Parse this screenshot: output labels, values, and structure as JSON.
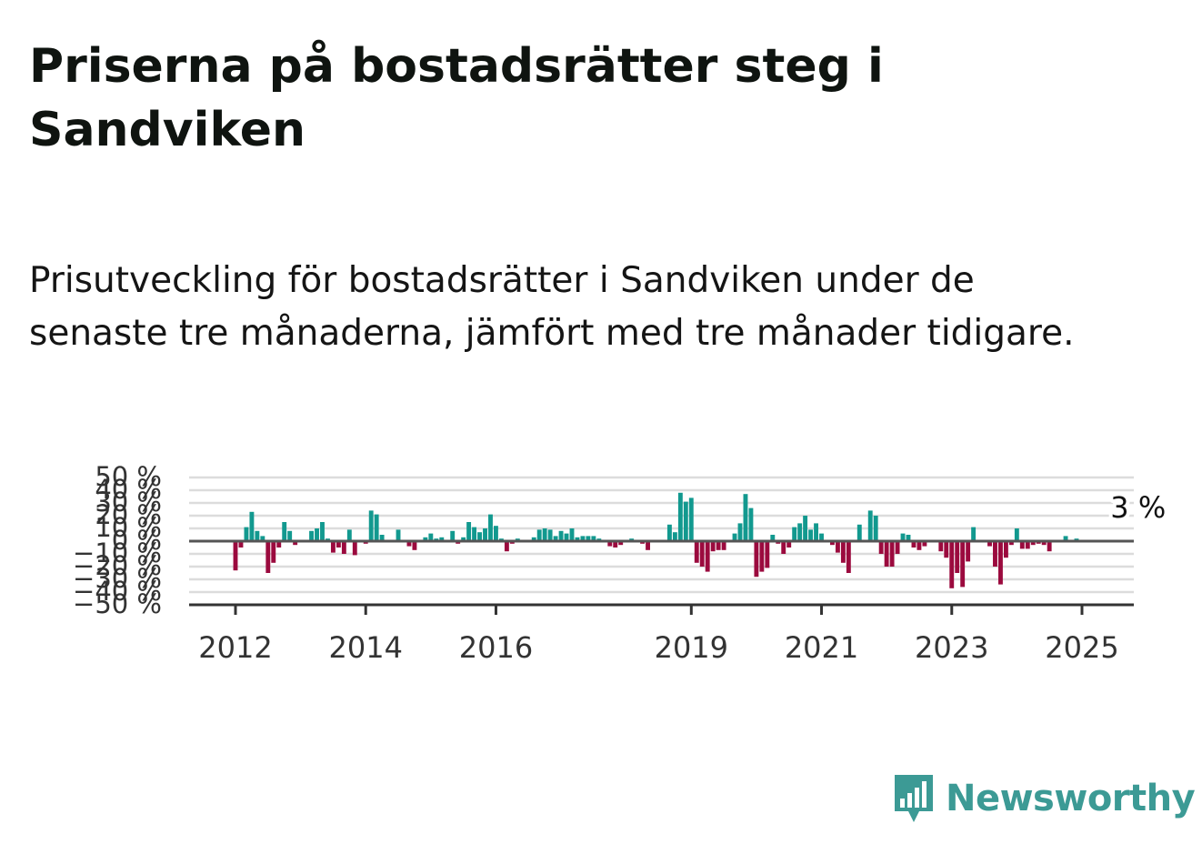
{
  "header": {
    "title": "Priserna på bostadsrätter steg i Sandviken",
    "subtitle": "Prisutveckling för bostadsrätter i Sandviken under de senaste tre månaderna, jämfört med tre månader tidigare."
  },
  "brand": {
    "name": "Newsworthy",
    "icon": "newsworthy-logo-icon",
    "color": "#3c9a95"
  },
  "chart_data": {
    "type": "bar",
    "title": "",
    "xlabel": "",
    "ylabel": "",
    "ylim": [
      -50,
      50
    ],
    "y_ticks": [
      {
        "value": 50,
        "label": "50 %"
      },
      {
        "value": 40,
        "label": "40 %"
      },
      {
        "value": 30,
        "label": "30 %"
      },
      {
        "value": 20,
        "label": "20 %"
      },
      {
        "value": 10,
        "label": "10 %"
      },
      {
        "value": 0,
        "label": "0 %"
      },
      {
        "value": -10,
        "label": "−10 %"
      },
      {
        "value": -20,
        "label": "−20 %"
      },
      {
        "value": -30,
        "label": "−30 %"
      },
      {
        "value": -40,
        "label": "−40 %"
      },
      {
        "value": -50,
        "label": "−50 %"
      }
    ],
    "x_ticks": [
      {
        "value": 2012,
        "label": "2012"
      },
      {
        "value": 2014,
        "label": "2014"
      },
      {
        "value": 2016,
        "label": "2016"
      },
      {
        "value": 2019,
        "label": "2019"
      },
      {
        "value": 2021,
        "label": "2021"
      },
      {
        "value": 2023,
        "label": "2023"
      },
      {
        "value": 2025,
        "label": "2025"
      }
    ],
    "x_start": 2012.0,
    "x_step": 0.08333,
    "positive_color": "#12998f",
    "negative_color": "#9b0a3e",
    "grid": true,
    "annotation": {
      "label": "3 %",
      "index": 162
    },
    "values": [
      -23,
      -5,
      11,
      23,
      8,
      4,
      -25,
      -17,
      -5,
      15,
      8,
      -3,
      0,
      0,
      8,
      10,
      15,
      2,
      -9,
      -5,
      -10,
      9,
      -11,
      0,
      -2,
      24,
      21,
      5,
      0,
      -1,
      9,
      0,
      -4,
      -7,
      0,
      3,
      6,
      2,
      3,
      0,
      8,
      -2,
      3,
      15,
      11,
      7,
      10,
      21,
      12,
      2,
      -8,
      -2,
      2,
      0,
      0,
      3,
      9,
      10,
      9,
      4,
      8,
      6,
      10,
      3,
      4,
      4,
      4,
      2,
      0,
      -4,
      -5,
      -3,
      0,
      2,
      0,
      -2,
      -7,
      0,
      0,
      0,
      13,
      7,
      38,
      31,
      34,
      -17,
      -20,
      -24,
      -8,
      -7,
      -7,
      0,
      6,
      14,
      37,
      26,
      -28,
      -24,
      -21,
      5,
      -2,
      -10,
      -5,
      11,
      14,
      20,
      9,
      14,
      6,
      0,
      -3,
      -9,
      -17,
      -25,
      0,
      13,
      0,
      24,
      20,
      -10,
      -20,
      -20,
      -10,
      6,
      5,
      -5,
      -7,
      -4,
      0,
      0,
      -8,
      -13,
      -37,
      -25,
      -36,
      -16,
      11,
      0,
      0,
      -4,
      -20,
      -34,
      -13,
      -3,
      10,
      -6,
      -6,
      -3,
      -2,
      -3,
      -8,
      0,
      0,
      4,
      0,
      2
    ]
  }
}
